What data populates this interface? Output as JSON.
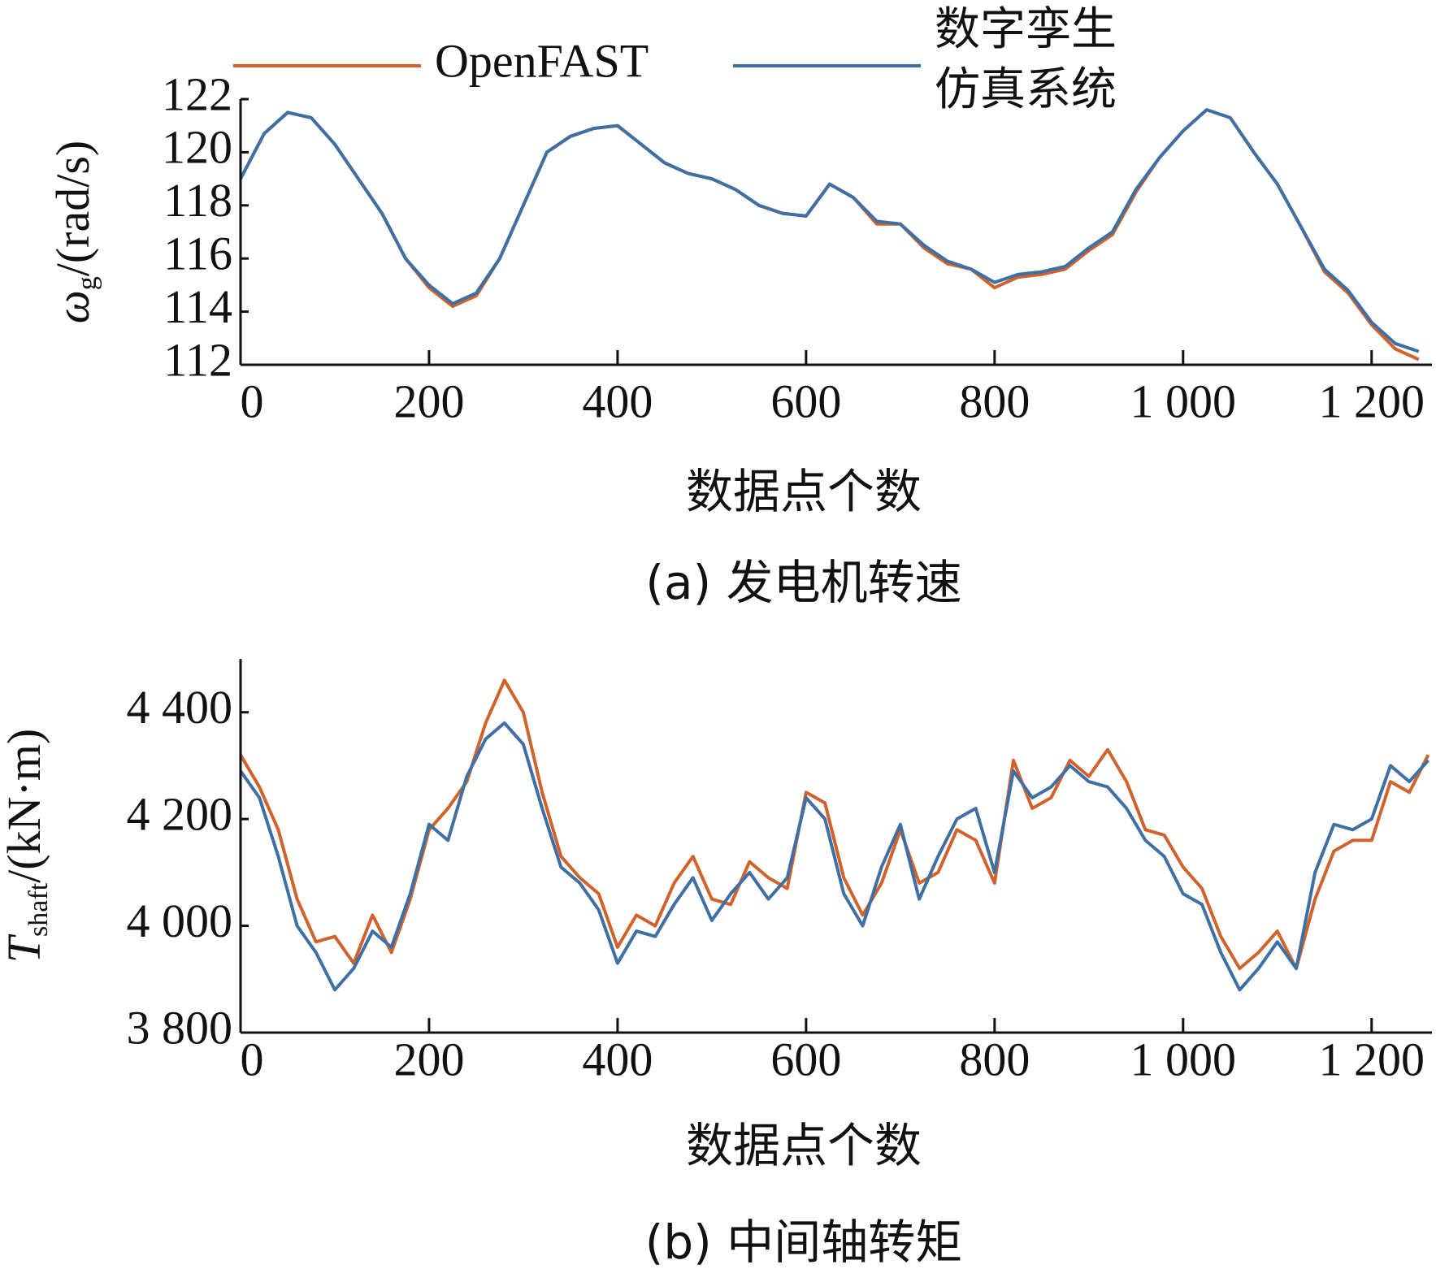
{
  "chart_data": [
    {
      "type": "line",
      "caption": "(a) 发电机转速",
      "x_label": "数据点个数",
      "y_label": {
        "symbol": "ω",
        "subscript": "g",
        "unit": "/(rad/s)"
      },
      "legend": "top",
      "xlim": [
        0,
        1264
      ],
      "xticks": [
        0,
        200,
        400,
        600,
        800,
        {
          "value": 1000,
          "label": "1 000"
        },
        {
          "value": 1200,
          "label": "1 200"
        }
      ],
      "ylim": [
        112,
        122
      ],
      "yticks": [
        112,
        114,
        116,
        118,
        120,
        122
      ],
      "x": [
        0,
        25,
        50,
        75,
        100,
        125,
        150,
        175,
        200,
        225,
        250,
        275,
        300,
        325,
        350,
        375,
        400,
        425,
        450,
        475,
        500,
        525,
        550,
        575,
        600,
        625,
        650,
        675,
        700,
        725,
        750,
        775,
        800,
        825,
        850,
        875,
        900,
        925,
        950,
        975,
        1000,
        1025,
        1050,
        1075,
        1100,
        1125,
        1150,
        1175,
        1200,
        1225,
        1250
      ],
      "series": [
        {
          "name": "OpenFAST",
          "color": "#d2622b",
          "values": [
            119.0,
            120.7,
            121.5,
            121.3,
            120.3,
            119.0,
            117.7,
            116.0,
            114.9,
            114.2,
            114.6,
            116.0,
            118.0,
            120.0,
            120.6,
            120.9,
            121.0,
            120.3,
            119.6,
            119.2,
            119.0,
            118.6,
            118.0,
            117.7,
            117.6,
            118.8,
            118.3,
            117.3,
            117.3,
            116.4,
            115.8,
            115.6,
            114.9,
            115.3,
            115.4,
            115.6,
            116.3,
            116.9,
            118.5,
            119.8,
            120.8,
            121.6,
            121.3,
            120.0,
            118.8,
            117.2,
            115.5,
            114.7,
            113.5,
            112.6,
            112.2
          ]
        },
        {
          "name": "数字孪生仿真系统",
          "color": "#3e6fa5",
          "values": [
            119.0,
            120.7,
            121.5,
            121.3,
            120.3,
            119.0,
            117.7,
            116.0,
            115.0,
            114.3,
            114.7,
            116.0,
            118.0,
            120.0,
            120.6,
            120.9,
            121.0,
            120.3,
            119.6,
            119.2,
            119.0,
            118.6,
            118.0,
            117.7,
            117.6,
            118.8,
            118.3,
            117.4,
            117.3,
            116.5,
            115.9,
            115.6,
            115.1,
            115.4,
            115.5,
            115.7,
            116.4,
            117.0,
            118.6,
            119.8,
            120.8,
            121.6,
            121.3,
            120.0,
            118.8,
            117.2,
            115.6,
            114.8,
            113.6,
            112.8,
            112.5
          ]
        }
      ]
    },
    {
      "type": "line",
      "caption": "(b) 中间轴转矩",
      "x_label": "数据点个数",
      "y_label": {
        "symbol": "T",
        "subscript": "shaft",
        "unit": "/(kN·m)"
      },
      "xlim": [
        0,
        1264
      ],
      "xticks": [
        0,
        200,
        400,
        600,
        800,
        {
          "value": 1000,
          "label": "1 000"
        },
        {
          "value": 1200,
          "label": "1 200"
        }
      ],
      "ylim": [
        3800,
        4500
      ],
      "yticks": [
        {
          "value": 3800,
          "label": "3 800"
        },
        {
          "value": 4000,
          "label": "4 000"
        },
        {
          "value": 4200,
          "label": "4 200"
        },
        {
          "value": 4400,
          "label": "4 400"
        }
      ],
      "x": [
        0,
        20,
        40,
        60,
        80,
        100,
        120,
        140,
        160,
        180,
        200,
        220,
        240,
        260,
        280,
        300,
        320,
        340,
        360,
        380,
        400,
        420,
        440,
        460,
        480,
        500,
        520,
        540,
        560,
        580,
        600,
        620,
        640,
        660,
        680,
        700,
        720,
        740,
        760,
        780,
        800,
        820,
        840,
        860,
        880,
        900,
        920,
        940,
        960,
        980,
        1000,
        1020,
        1040,
        1060,
        1080,
        1100,
        1120,
        1140,
        1160,
        1180,
        1200,
        1220,
        1240,
        1260
      ],
      "series": [
        {
          "name": "OpenFAST",
          "color": "#d2622b",
          "values": [
            4320,
            4260,
            4180,
            4050,
            3970,
            3980,
            3930,
            4020,
            3950,
            4050,
            4180,
            4220,
            4270,
            4380,
            4460,
            4400,
            4250,
            4130,
            4090,
            4060,
            3960,
            4020,
            4000,
            4080,
            4130,
            4050,
            4040,
            4120,
            4090,
            4070,
            4250,
            4230,
            4090,
            4020,
            4080,
            4180,
            4080,
            4100,
            4180,
            4160,
            4080,
            4310,
            4220,
            4240,
            4310,
            4280,
            4330,
            4270,
            4180,
            4170,
            4110,
            4070,
            3980,
            3920,
            3950,
            3990,
            3920,
            4050,
            4140,
            4160,
            4160,
            4270,
            4250,
            4320
          ]
        },
        {
          "name": "数字孪生仿真系统",
          "color": "#3e6fa5",
          "values": [
            4290,
            4240,
            4130,
            4000,
            3950,
            3880,
            3920,
            3990,
            3960,
            4060,
            4190,
            4160,
            4280,
            4350,
            4380,
            4340,
            4220,
            4110,
            4080,
            4030,
            3930,
            3990,
            3980,
            4040,
            4090,
            4010,
            4060,
            4100,
            4050,
            4090,
            4240,
            4200,
            4060,
            4000,
            4110,
            4190,
            4050,
            4130,
            4200,
            4220,
            4100,
            4290,
            4240,
            4260,
            4300,
            4270,
            4260,
            4220,
            4160,
            4130,
            4060,
            4040,
            3950,
            3880,
            3920,
            3970,
            3920,
            4100,
            4190,
            4180,
            4200,
            4300,
            4270,
            4310
          ]
        }
      ]
    }
  ]
}
